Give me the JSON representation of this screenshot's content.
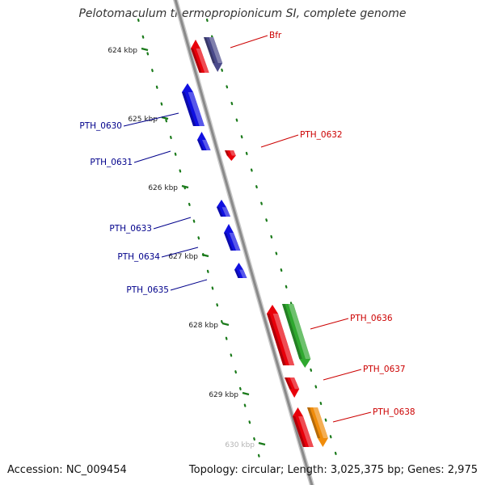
{
  "title": "Pelotomaculum thermopropionicum SI, complete genome",
  "footer": {
    "accession": "Accession: NC_009454",
    "summary": "Topology: circular; Length: 3,025,375 bp; Genes: 2,975"
  },
  "colors": {
    "backbone": "#8a8a8a",
    "tick": "#1a7a1a",
    "label_red": "#cc0000",
    "label_blue": "#00008b",
    "gene_red": "#e8000a",
    "gene_blue": "#1010e0",
    "gene_purple": "#4a4a8a",
    "gene_green": "#2fa82f",
    "gene_orange": "#f08c0a"
  },
  "ticks": [
    {
      "label": "624 kbp"
    },
    {
      "label": "625 kbp"
    },
    {
      "label": "626 kbp"
    },
    {
      "label": "627 kbp"
    },
    {
      "label": "628 kbp"
    },
    {
      "label": "629 kbp"
    },
    {
      "label": "630 kbp"
    }
  ],
  "genes": [
    {
      "label": "Bfr",
      "color": "gene_purple",
      "strand": "forward"
    },
    {
      "label": "",
      "color": "gene_red",
      "strand": "reverse"
    },
    {
      "label": "PTH_0630",
      "color": "gene_blue",
      "strand": "reverse"
    },
    {
      "label": "PTH_0631",
      "color": "gene_blue",
      "strand": "reverse"
    },
    {
      "label": "PTH_0632",
      "color": "gene_red",
      "strand": "forward"
    },
    {
      "label": "PTH_0633",
      "color": "gene_blue",
      "strand": "reverse"
    },
    {
      "label": "PTH_0634",
      "color": "gene_blue",
      "strand": "reverse"
    },
    {
      "label": "PTH_0635",
      "color": "gene_blue",
      "strand": "reverse"
    },
    {
      "label": "PTH_0636",
      "color": "gene_green",
      "strand": "forward"
    },
    {
      "label": "",
      "color": "gene_red",
      "strand": "reverse"
    },
    {
      "label": "PTH_0637",
      "color": "gene_red",
      "strand": "forward"
    },
    {
      "label": "PTH_0638",
      "color": "gene_orange",
      "strand": "forward"
    },
    {
      "label": "",
      "color": "gene_red",
      "strand": "reverse"
    }
  ]
}
